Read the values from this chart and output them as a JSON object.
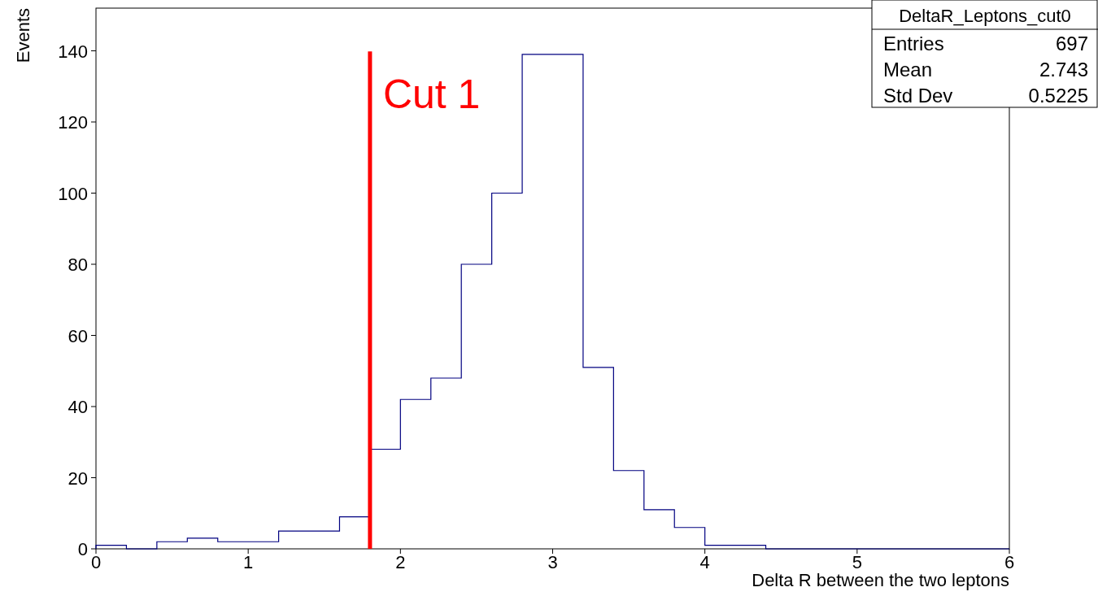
{
  "chart_data": {
    "type": "histogram",
    "xlabel": "Delta R between the two leptons",
    "ylabel": "Events",
    "legend_title": "DeltaR_Leptons_cut0",
    "bins": [
      0,
      0.2,
      0.4,
      0.6,
      0.8,
      1,
      1.2,
      1.4,
      1.6,
      1.8,
      2,
      2.2,
      2.4,
      2.6,
      2.8,
      3,
      3.2,
      3.4,
      3.6,
      3.8,
      4,
      4.2,
      4.4,
      4.6,
      4.8,
      5,
      5.2,
      5.4,
      5.6,
      5.8,
      6
    ],
    "values": [
      1,
      0,
      2,
      3,
      2,
      2,
      5,
      5,
      9,
      28,
      42,
      48,
      80,
      100,
      139,
      139,
      51,
      22,
      11,
      6,
      1,
      1,
      0,
      0,
      0,
      0,
      0,
      0,
      0,
      0
    ],
    "color": "#000080",
    "xlim": [
      0,
      6
    ],
    "ylim": [
      0,
      152
    ],
    "xticks": [
      0,
      1,
      2,
      3,
      4,
      5,
      6
    ],
    "yticks": [
      0,
      20,
      40,
      60,
      80,
      100,
      120,
      140
    ],
    "ref_lines": [
      {
        "axis": "x",
        "value": 1.8,
        "label": "Cut 1",
        "color": "#ff0000"
      }
    ],
    "annotations": [
      "Entries",
      "697",
      "Mean",
      "2.743",
      "Std Dev",
      "0.5225"
    ]
  }
}
